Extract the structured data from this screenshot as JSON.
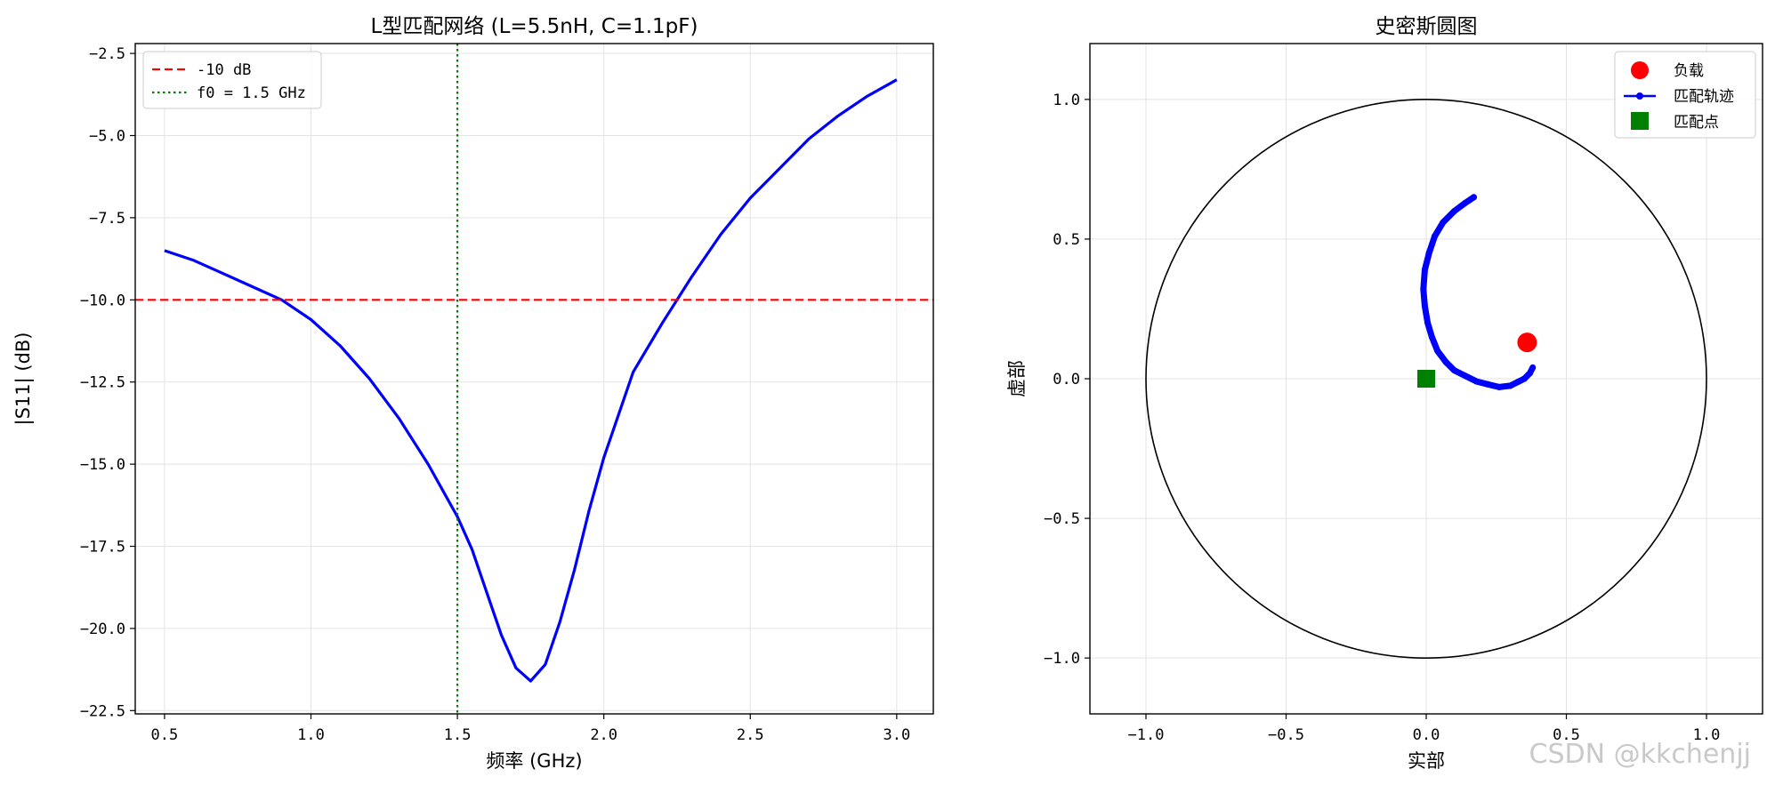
{
  "watermark": "CSDN @kkchenjj",
  "chart_data": [
    {
      "type": "line",
      "title": "L型匹配网络 (L=5.5nH, C=1.1pF)",
      "xlabel": "频率 (GHz)",
      "ylabel": "|S11| (dB)",
      "xlim": [
        0.4,
        3.125
      ],
      "ylim": [
        -22.6,
        -2.2
      ],
      "xticks": [
        0.5,
        1.0,
        1.5,
        2.0,
        2.5,
        3.0
      ],
      "xtick_labels": [
        "0.5",
        "1.0",
        "1.5",
        "2.0",
        "2.5",
        "3.0"
      ],
      "yticks": [
        -2.5,
        -5.0,
        -7.5,
        -10.0,
        -12.5,
        -15.0,
        -17.5,
        -20.0,
        -22.5
      ],
      "ytick_labels": [
        "−2.5",
        "−5.0",
        "−7.5",
        "−10.0",
        "−12.5",
        "−15.0",
        "−17.5",
        "−20.0",
        "−22.5"
      ],
      "grid": true,
      "legend_position": "top-left",
      "series": [
        {
          "color": "#0000ff",
          "x": [
            0.5,
            0.6,
            0.7,
            0.8,
            0.9,
            1.0,
            1.1,
            1.2,
            1.3,
            1.4,
            1.5,
            1.55,
            1.6,
            1.65,
            1.7,
            1.75,
            1.8,
            1.85,
            1.9,
            1.95,
            2.0,
            2.1,
            2.2,
            2.3,
            2.4,
            2.5,
            2.6,
            2.7,
            2.8,
            2.9,
            3.0
          ],
          "y": [
            -8.5,
            -8.8,
            -9.2,
            -9.6,
            -10.0,
            -10.6,
            -11.4,
            -12.4,
            -13.6,
            -15.0,
            -16.6,
            -17.6,
            -18.9,
            -20.2,
            -21.2,
            -21.6,
            -21.1,
            -19.8,
            -18.2,
            -16.4,
            -14.8,
            -12.2,
            -10.7,
            -9.3,
            -8.0,
            -6.9,
            -6.0,
            -5.1,
            -4.4,
            -3.8,
            -3.3
          ]
        }
      ],
      "references": [
        {
          "name": "-10 dB",
          "orientation": "horizontal",
          "value": -10.0,
          "color": "#ff0000",
          "style": "dashed"
        },
        {
          "name": "f0 = 1.5 GHz",
          "orientation": "vertical",
          "value": 1.5,
          "color": "#008000",
          "style": "dotted"
        }
      ]
    },
    {
      "type": "scatter",
      "title": "史密斯圆图",
      "xlabel": "实部",
      "ylabel": "虚部",
      "xlim": [
        -1.2,
        1.2
      ],
      "ylim": [
        -1.2,
        1.2
      ],
      "xticks": [
        -1.0,
        -0.5,
        0.0,
        0.5,
        1.0
      ],
      "xtick_labels": [
        "−1.0",
        "−0.5",
        "0.0",
        "0.5",
        "1.0"
      ],
      "yticks": [
        1.0,
        0.5,
        0.0,
        -0.5,
        -1.0
      ],
      "ytick_labels": [
        "1.0",
        "0.5",
        "0.0",
        "−0.5",
        "−1.0"
      ],
      "grid": true,
      "legend_position": "top-right",
      "unit_circle": {
        "radius": 1.0,
        "color": "#000000"
      },
      "series": [
        {
          "name": "负载",
          "marker": "circle",
          "color": "#ff0000",
          "x": [
            0.36
          ],
          "y": [
            0.13
          ]
        },
        {
          "name": "匹配轨迹",
          "marker": "line-dot",
          "color": "#0000ff",
          "x": [
            0.17,
            0.14,
            0.1,
            0.06,
            0.03,
            0.01,
            -0.005,
            -0.01,
            -0.005,
            0.005,
            0.02,
            0.04,
            0.07,
            0.1,
            0.14,
            0.18,
            0.22,
            0.26,
            0.3,
            0.33,
            0.35,
            0.37,
            0.38
          ],
          "y": [
            0.65,
            0.63,
            0.6,
            0.56,
            0.51,
            0.45,
            0.39,
            0.32,
            0.26,
            0.2,
            0.15,
            0.1,
            0.06,
            0.03,
            0.01,
            -0.01,
            -0.02,
            -0.03,
            -0.025,
            -0.01,
            0.0,
            0.02,
            0.04
          ]
        },
        {
          "name": "匹配点",
          "marker": "square",
          "color": "#008000",
          "x": [
            0.0
          ],
          "y": [
            0.0
          ]
        }
      ]
    }
  ]
}
